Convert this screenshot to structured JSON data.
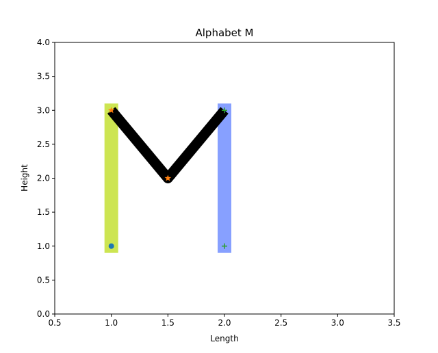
{
  "chart_data": {
    "type": "line",
    "title": "Alphabet M",
    "xlabel": "Length",
    "ylabel": "Height",
    "xlim": [
      0.5,
      3.5
    ],
    "ylim": [
      0.0,
      4.0
    ],
    "xticks": [
      "0.5",
      "1.0",
      "1.5",
      "2.0",
      "2.5",
      "3.0",
      "3.5"
    ],
    "yticks": [
      "0.0",
      "0.5",
      "1.0",
      "1.5",
      "2.0",
      "2.5",
      "3.0",
      "3.5",
      "4.0"
    ],
    "grid": false,
    "series": [
      {
        "kind": "bar",
        "color": "#cde552",
        "x": [
          1.0,
          1.0
        ],
        "y": [
          0.9,
          3.1
        ]
      },
      {
        "kind": "bar",
        "color": "#87a0ff",
        "x": [
          2.0,
          2.0
        ],
        "y": [
          0.9,
          3.1
        ]
      },
      {
        "kind": "line",
        "color": "#000000",
        "x": [
          1.0,
          1.5,
          2.0
        ],
        "y": [
          3.0,
          2.0,
          3.0
        ]
      },
      {
        "kind": "marker",
        "marker": "circle",
        "color": "#1f77b4",
        "x": [
          1.0
        ],
        "y": [
          1.0
        ]
      },
      {
        "kind": "marker",
        "marker": "star",
        "color": "#ff7f0e",
        "x": [
          1.0,
          1.5
        ],
        "y": [
          3.0,
          2.0
        ]
      },
      {
        "kind": "marker",
        "marker": "plus",
        "color": "#2ca02c",
        "x": [
          2.0,
          2.0
        ],
        "y": [
          3.0,
          1.0
        ]
      }
    ]
  }
}
